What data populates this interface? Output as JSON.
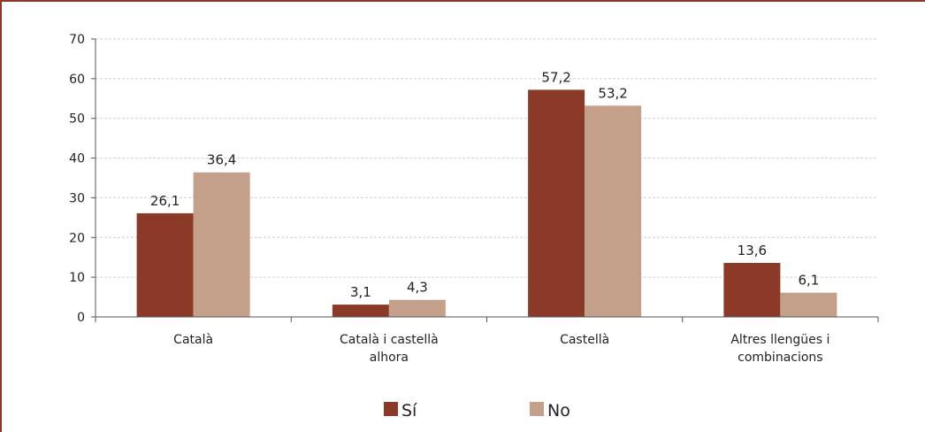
{
  "chart_data": {
    "type": "bar",
    "categories": [
      [
        "Català"
      ],
      [
        "Català i castellà",
        "alhora"
      ],
      [
        "Castellà"
      ],
      [
        "Altres llengües i",
        "combinacions"
      ]
    ],
    "series": [
      {
        "name": "Sí",
        "values": [
          26.1,
          3.1,
          57.2,
          13.6
        ],
        "labels": [
          "26,1",
          "3,1",
          "57,2",
          "13,6"
        ],
        "color": "#8b3a28"
      },
      {
        "name": "No",
        "values": [
          36.4,
          4.3,
          53.2,
          6.1
        ],
        "labels": [
          "36,4",
          "4,3",
          "53,2",
          "6,1"
        ],
        "color": "#c4a08a"
      }
    ],
    "ylim": [
      0,
      70
    ],
    "yticks": [
      0,
      10,
      20,
      30,
      40,
      50,
      60,
      70
    ],
    "grid": true,
    "legend": "bottom"
  },
  "colors": {
    "frame": "#8a3b28",
    "grid": "#d0d0d0",
    "axis": "#555555"
  }
}
